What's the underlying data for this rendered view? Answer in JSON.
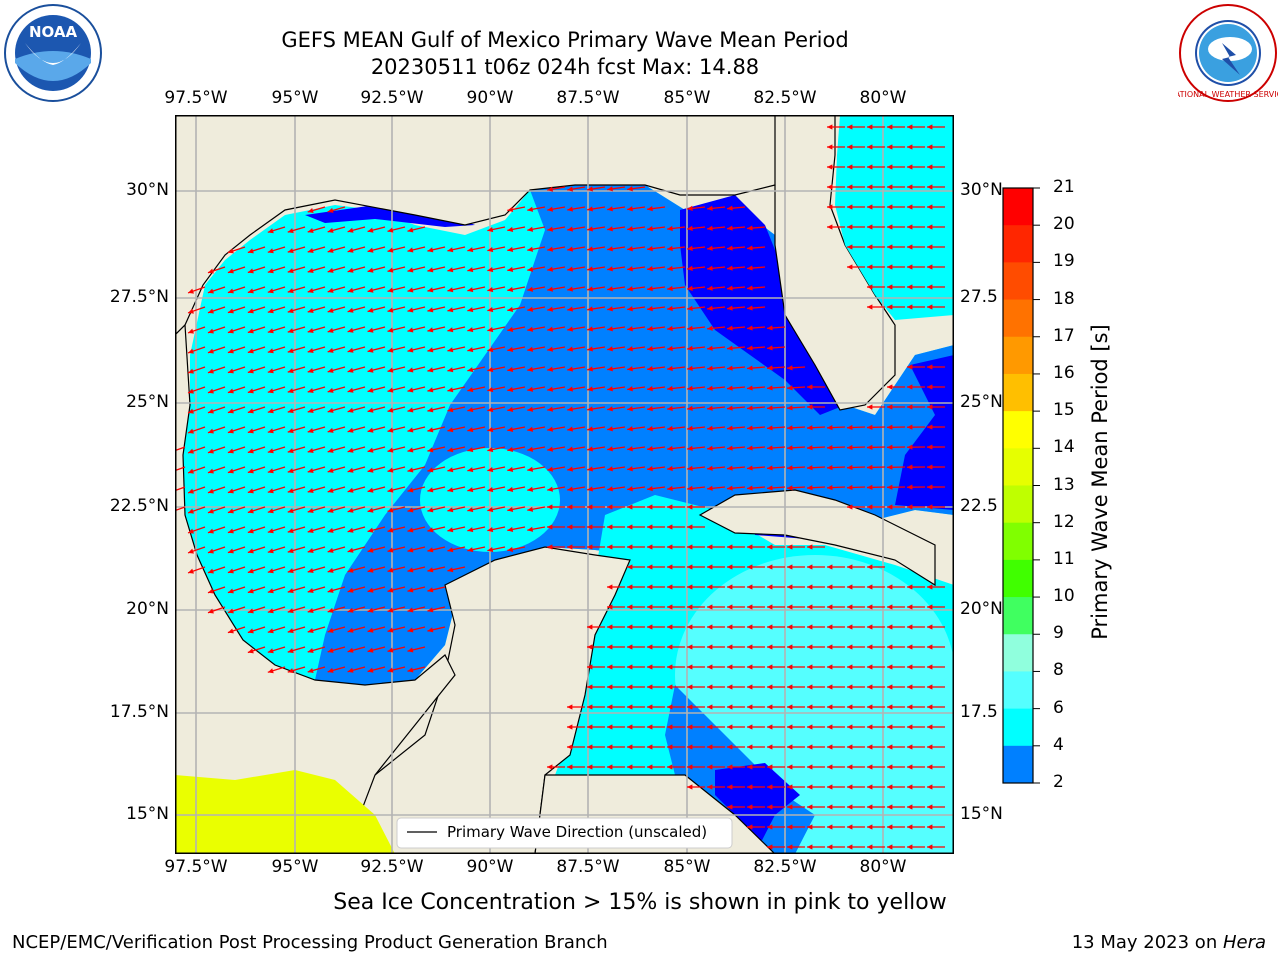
{
  "header": {
    "title_line1": "GEFS MEAN Gulf of Mexico Primary Wave Mean Period",
    "title_line2": "20230511 t06z 024h fcst   Max: 14.88"
  },
  "logos": {
    "left_text": "NOAA",
    "right_text": "NATIONAL WEATHER SERVICE"
  },
  "map": {
    "lon_labels": [
      "97.5°W",
      "95°W",
      "92.5°W",
      "90°W",
      "87.5°W",
      "85°W",
      "82.5°W",
      "80°W"
    ],
    "lat_labels": [
      "30°N",
      "27.5°N",
      "25°N",
      "22.5°N",
      "20°N",
      "17.5°N",
      "15°N"
    ],
    "lat_labels_right": [
      "30°N",
      "27.5",
      "25°N",
      "22.5",
      "20°N",
      "17.5",
      "15°N"
    ],
    "legend_label": "Primary Wave Direction (unscaled)",
    "colors": {
      "land": "#efecdc",
      "p2_4": "#0000ff",
      "p4_6": "#0080ff",
      "p6_8": "#00ffff",
      "p8_9": "#55ffff",
      "ice": "#eaff00",
      "arrow": "#ff0000"
    }
  },
  "colorbar": {
    "label": "Primary Wave Mean Period [s]",
    "ticks": [
      "21",
      "20",
      "19",
      "18",
      "17",
      "16",
      "15",
      "14",
      "13",
      "12",
      "11",
      "10",
      "9",
      "8",
      "6",
      "4",
      "2"
    ],
    "colors": [
      "#ff0000",
      "#ff2600",
      "#ff4c00",
      "#ff7200",
      "#ff9900",
      "#ffbf00",
      "#ffff00",
      "#e6ff00",
      "#bfff00",
      "#80ff00",
      "#40ff00",
      "#40ff60",
      "#90ffdd",
      "#55ffff",
      "#00ffff",
      "#0080ff",
      "#0000ff"
    ]
  },
  "note": "Sea Ice Concentration > 15% is shown in pink to yellow",
  "footer": {
    "left": "NCEP/EMC/Verification Post Processing Product Generation Branch",
    "date": "13 May 2023 on ",
    "machine": "Hera"
  }
}
